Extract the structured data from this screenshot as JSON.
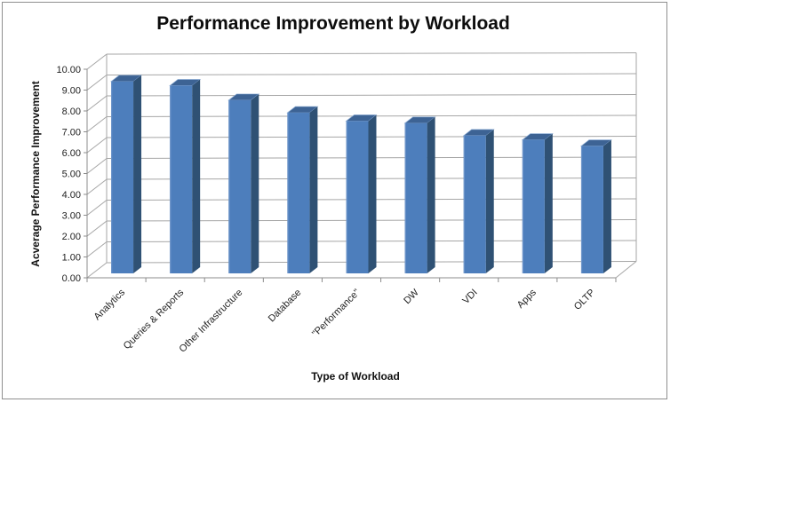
{
  "chart_data": {
    "type": "bar",
    "style": "3d-clustered-column",
    "title": "Performance Improvement by Workload",
    "xlabel": "Type of Workload",
    "ylabel": "Acverage Performance Improvement",
    "categories": [
      "Analytics",
      "Queries & Reports",
      "Other Infrastructure",
      "Database",
      "\"Performance\"",
      "DW",
      "VDI",
      "Apps",
      "OLTP"
    ],
    "values": [
      9.2,
      9.0,
      8.3,
      7.7,
      7.3,
      7.2,
      6.6,
      6.4,
      6.1
    ],
    "ylim": [
      0,
      10
    ],
    "ytick_step": 1,
    "ytick_labels": [
      "0.00",
      "1.00",
      "2.00",
      "3.00",
      "4.00",
      "5.00",
      "6.00",
      "7.00",
      "8.00",
      "9.00",
      "10.00"
    ],
    "grid": true,
    "legend": "none",
    "category_label_rotation_deg": 45,
    "colors": {
      "bar_front": "#4d7ebc",
      "bar_front_light": "#6e95ca",
      "bar_top": "#3d6394",
      "bar_side": "#2f5174",
      "bar_edge": "#8aabd4",
      "gridline": "#a6a6a6",
      "axis_line": "#8c8c8c",
      "frame_border": "#8f8f8f",
      "background": "#ffffff"
    }
  }
}
